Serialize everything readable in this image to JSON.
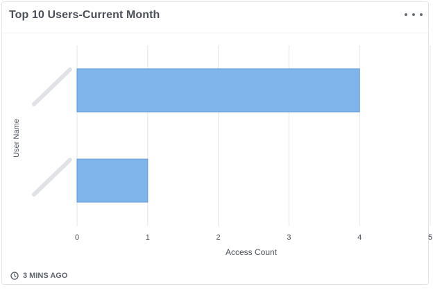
{
  "card": {
    "title": "Top 10 Users-Current Month",
    "menu_icon": "more-horizontal-icon"
  },
  "footer": {
    "icon": "clock-icon",
    "updated": "3 MINS AGO"
  },
  "colors": {
    "bar": "#7fb5ea",
    "bar_edge": "#5f9ad8",
    "grid": "#e3e5e8",
    "text": "#4a4f57"
  },
  "chart_data": {
    "type": "bar",
    "orientation": "horizontal",
    "categories": [
      "",
      ""
    ],
    "category_labels_redacted": true,
    "values": [
      4,
      1
    ],
    "xlabel": "Access Count",
    "ylabel": "User Name",
    "xlim": [
      0,
      5
    ],
    "x_ticks": [
      "0",
      "1",
      "2",
      "3",
      "4",
      "5"
    ],
    "grid": true,
    "legend": "none"
  }
}
